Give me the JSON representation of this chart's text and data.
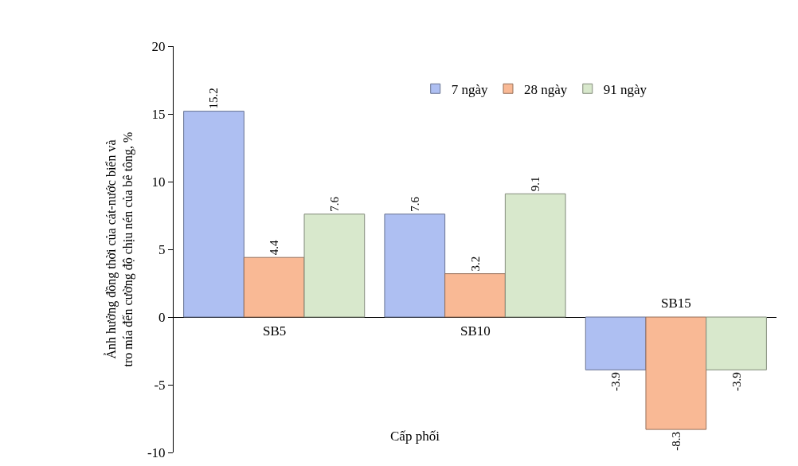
{
  "chart_data": {
    "type": "bar",
    "ylabel": "Ảnh hưởng đồng thời của cát-nước biển và\ntro mía đến cường độ chịu nén của bê tông, %",
    "xlabel": "Cấp phối",
    "categories": [
      "SB5",
      "SB10",
      "SB15"
    ],
    "series": [
      {
        "name": "7 ngày",
        "color": "#aebff2",
        "values": [
          15.2,
          7.6,
          -3.9
        ]
      },
      {
        "name": "28 ngày",
        "color": "#f9b995",
        "values": [
          4.4,
          3.2,
          -8.3
        ]
      },
      {
        "name": "91 ngày",
        "color": "#d8e8cc",
        "values": [
          7.6,
          9.1,
          -3.9
        ]
      }
    ],
    "ylim": [
      -10,
      20
    ],
    "yticks": [
      -10,
      -5,
      0,
      5,
      10,
      15,
      20
    ],
    "grid": false,
    "legend": "top",
    "data_labels": true
  }
}
